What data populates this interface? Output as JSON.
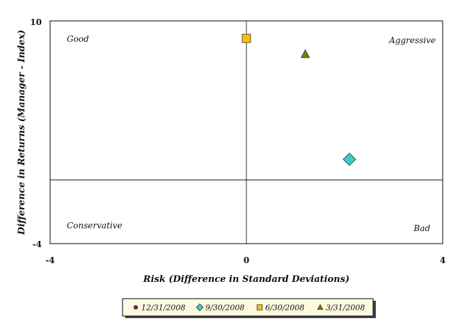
{
  "chart_data": {
    "type": "scatter",
    "xlabel": "Risk (Difference in Standard Deviations)",
    "ylabel": "Difference in Returns (Manager - Index)",
    "xlim": [
      -4,
      4
    ],
    "ylim": [
      -4,
      10
    ],
    "x_ticks": [
      "-4",
      "0",
      "4"
    ],
    "y_ticks": [
      "10",
      "-4"
    ],
    "grid": false,
    "reference_lines": {
      "x": 0,
      "y": 0
    },
    "quadrant_labels": {
      "top_left": "Good",
      "top_right": "Aggressive",
      "bottom_left": "Conservative",
      "bottom_right": "Bad"
    },
    "legend_position": "bottom",
    "series": [
      {
        "name": "12/31/2008",
        "marker": "circle",
        "color": "#7b1f5c",
        "points": []
      },
      {
        "name": "9/30/2008",
        "marker": "diamond",
        "color": "#3cc8c8",
        "points": [
          [
            2.1,
            1.3
          ]
        ]
      },
      {
        "name": "6/30/2008",
        "marker": "square",
        "color": "#f5c400",
        "points": [
          [
            0.0,
            8.9
          ]
        ]
      },
      {
        "name": "3/31/2008",
        "marker": "triangle",
        "color": "#7f7a00",
        "points": [
          [
            1.2,
            7.9
          ]
        ]
      }
    ]
  }
}
